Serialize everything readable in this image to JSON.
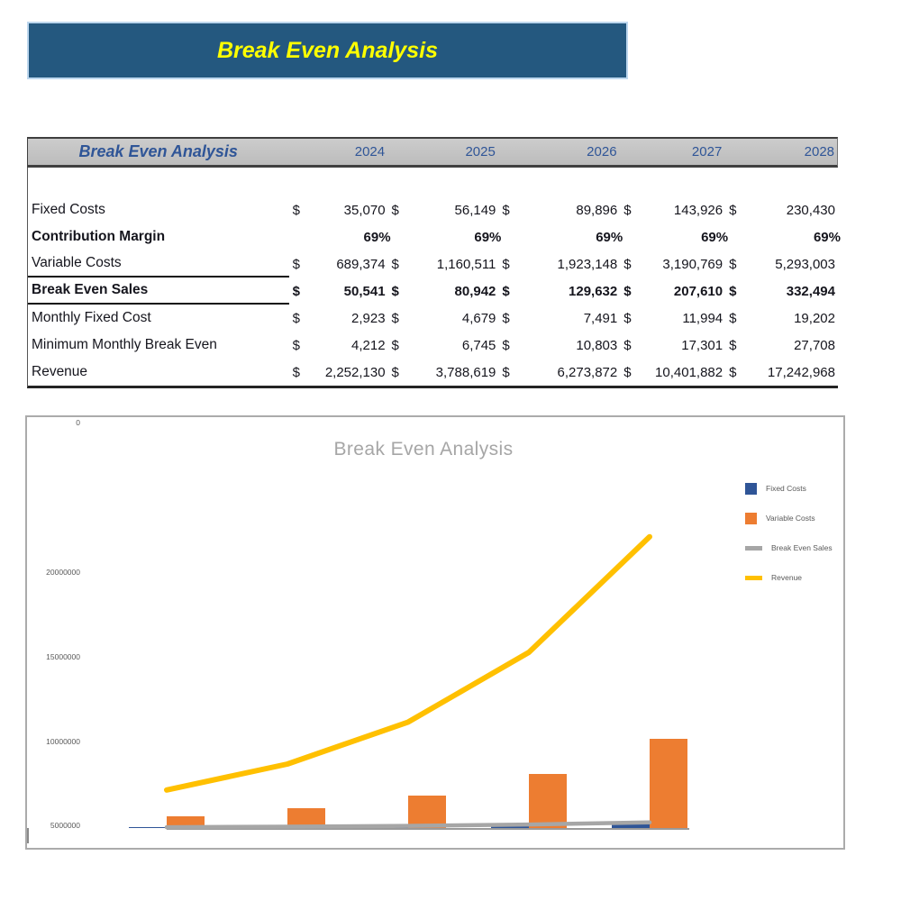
{
  "banner": {
    "title": "Break Even Analysis"
  },
  "table": {
    "header": {
      "title": "Break Even Analysis",
      "years": [
        "2024",
        "2025",
        "2026",
        "2027",
        "2028"
      ]
    },
    "rows": [
      {
        "label": "Fixed Costs",
        "cur": "$",
        "values": [
          "35,070",
          "56,149",
          "89,896",
          "143,926",
          "230,430"
        ]
      },
      {
        "label": "Contribution Margin",
        "cur": "",
        "values": [
          "69%",
          "69%",
          "69%",
          "69%",
          "69%"
        ]
      },
      {
        "label": "Variable Costs",
        "cur": "$",
        "values": [
          "689,374",
          "1,160,511",
          "1,923,148",
          "3,190,769",
          "5,293,003"
        ]
      },
      {
        "label": "Break Even Sales",
        "cur": "$",
        "values": [
          "50,541",
          "80,942",
          "129,632",
          "207,610",
          "332,494"
        ]
      },
      {
        "label": "Monthly Fixed Cost",
        "cur": "$",
        "values": [
          "2,923",
          "4,679",
          "7,491",
          "11,994",
          "19,202"
        ]
      },
      {
        "label": "Minimum Monthly Break Even",
        "cur": "$",
        "values": [
          "4,212",
          "6,745",
          "10,803",
          "17,301",
          "27,708"
        ]
      },
      {
        "label": "Revenue",
        "cur": "$",
        "values": [
          "2,252,130",
          "3,788,619",
          "6,273,872",
          "10,401,882",
          "17,242,968"
        ]
      }
    ]
  },
  "chart": {
    "title": "Break Even Analysis",
    "y_axis_labels": [
      "20000000",
      "15000000",
      "10000000",
      "5000000",
      "0"
    ]
  },
  "chart_data": {
    "type": "combo",
    "categories": [
      "2024",
      "2025",
      "2026",
      "2027",
      "2028"
    ],
    "series": [
      {
        "name": "Fixed Costs",
        "type": "bar",
        "color": "#2F5597",
        "values": [
          35070,
          56149,
          89896,
          143926,
          230430
        ]
      },
      {
        "name": "Variable Costs",
        "type": "bar",
        "color": "#ED7D31",
        "values": [
          689374,
          1160511,
          1923148,
          3190769,
          5293003
        ]
      },
      {
        "name": "Break Even Sales",
        "type": "line",
        "color": "#A6A6A6",
        "values": [
          50541,
          80942,
          129632,
          207610,
          332494
        ]
      },
      {
        "name": "Revenue",
        "type": "line",
        "color": "#FFC000",
        "values": [
          2252130,
          3788619,
          6273872,
          10401882,
          17242968
        ]
      }
    ],
    "title": "Break Even Analysis",
    "xlabel": "",
    "ylabel": "",
    "ylim": [
      0,
      20000000
    ],
    "y_ticks": [
      0,
      5000000,
      10000000,
      15000000,
      20000000
    ],
    "x_axis_labels_visible": false,
    "grid": false,
    "legend_position": "right"
  },
  "colors": {
    "banner_bg": "#24587F",
    "banner_border": "#BDD7EE",
    "banner_text": "#FFFF00",
    "table_header_bg": "#C4C4C4",
    "table_header_text": "#2F5597",
    "fixed_costs": "#2F5597",
    "variable_costs": "#ED7D31",
    "break_even_sales": "#A6A6A6",
    "revenue": "#FFC000",
    "chart_border": "#ABABAB",
    "chart_title": "#A6A6A6",
    "axis_text": "#595959"
  }
}
